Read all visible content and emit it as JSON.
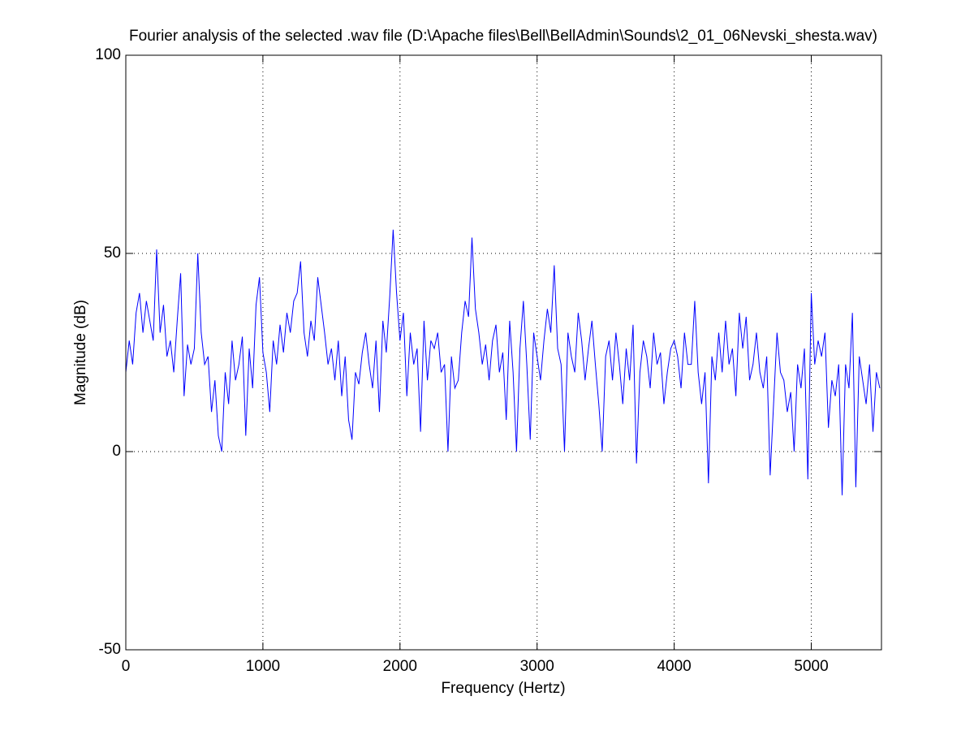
{
  "chart_data": {
    "type": "line",
    "title": "Fourier analysis of the selected .wav file (D:\\Apache files\\Bell\\BellAdmin\\Sounds\\2_01_06Nevski_shesta.wav)",
    "xlabel": "Frequency (Hertz)",
    "ylabel": "Magnitude (dB)",
    "xlim": [
      0,
      5512
    ],
    "ylim": [
      -50,
      100
    ],
    "xticks": [
      0,
      1000,
      2000,
      3000,
      4000,
      5000
    ],
    "yticks": [
      -50,
      0,
      50,
      100
    ],
    "grid": true,
    "series": [
      {
        "color": "#0000ff",
        "x": [
          0,
          25,
          50,
          75,
          100,
          125,
          150,
          175,
          200,
          225,
          250,
          275,
          300,
          325,
          350,
          375,
          400,
          425,
          450,
          475,
          500,
          525,
          550,
          575,
          600,
          625,
          650,
          675,
          700,
          725,
          750,
          775,
          800,
          825,
          850,
          875,
          900,
          925,
          950,
          975,
          1000,
          1025,
          1050,
          1075,
          1100,
          1125,
          1150,
          1175,
          1200,
          1225,
          1250,
          1275,
          1300,
          1325,
          1350,
          1375,
          1400,
          1425,
          1450,
          1475,
          1500,
          1525,
          1550,
          1575,
          1600,
          1625,
          1650,
          1675,
          1700,
          1725,
          1750,
          1775,
          1800,
          1825,
          1850,
          1875,
          1900,
          1925,
          1950,
          1975,
          2000,
          2025,
          2050,
          2075,
          2100,
          2125,
          2150,
          2175,
          2200,
          2225,
          2250,
          2275,
          2300,
          2325,
          2350,
          2375,
          2400,
          2425,
          2450,
          2475,
          2500,
          2525,
          2550,
          2575,
          2600,
          2625,
          2650,
          2675,
          2700,
          2725,
          2750,
          2775,
          2800,
          2825,
          2850,
          2875,
          2900,
          2925,
          2950,
          2975,
          3000,
          3025,
          3050,
          3075,
          3100,
          3125,
          3150,
          3175,
          3200,
          3225,
          3250,
          3275,
          3300,
          3325,
          3350,
          3375,
          3400,
          3425,
          3450,
          3475,
          3500,
          3525,
          3550,
          3575,
          3600,
          3625,
          3650,
          3675,
          3700,
          3725,
          3750,
          3775,
          3800,
          3825,
          3850,
          3875,
          3900,
          3925,
          3950,
          3975,
          4000,
          4025,
          4050,
          4075,
          4100,
          4125,
          4150,
          4175,
          4200,
          4225,
          4250,
          4275,
          4300,
          4325,
          4350,
          4375,
          4400,
          4425,
          4450,
          4475,
          4500,
          4525,
          4550,
          4575,
          4600,
          4625,
          4650,
          4675,
          4700,
          4725,
          4750,
          4775,
          4800,
          4825,
          4850,
          4875,
          4900,
          4925,
          4950,
          4975,
          5000,
          5025,
          5050,
          5075,
          5100,
          5125,
          5150,
          5175,
          5200,
          5225,
          5250,
          5275,
          5300,
          5325,
          5350,
          5375,
          5400,
          5425,
          5450,
          5475,
          5500
        ],
        "values": [
          20,
          28,
          22,
          35,
          40,
          30,
          38,
          33,
          28,
          51,
          30,
          37,
          24,
          28,
          20,
          33,
          45,
          14,
          27,
          22,
          26,
          50,
          30,
          22,
          24,
          10,
          18,
          4,
          0,
          20,
          12,
          28,
          18,
          22,
          29,
          4,
          26,
          16,
          37,
          44,
          25,
          20,
          10,
          28,
          22,
          32,
          25,
          35,
          30,
          38,
          40,
          48,
          30,
          24,
          33,
          28,
          44,
          37,
          30,
          22,
          26,
          18,
          28,
          14,
          24,
          8,
          3,
          20,
          17,
          25,
          30,
          22,
          16,
          28,
          10,
          33,
          25,
          39,
          56,
          40,
          28,
          35,
          14,
          30,
          22,
          26,
          5,
          33,
          18,
          28,
          26,
          30,
          20,
          22,
          0,
          24,
          16,
          18,
          30,
          38,
          34,
          54,
          36,
          30,
          22,
          27,
          18,
          28,
          32,
          20,
          25,
          8,
          33,
          20,
          0,
          26,
          38,
          22,
          3,
          30,
          24,
          18,
          28,
          36,
          30,
          47,
          26,
          22,
          0,
          30,
          24,
          20,
          35,
          28,
          18,
          26,
          33,
          22,
          12,
          0,
          24,
          28,
          18,
          30,
          22,
          12,
          26,
          18,
          32,
          -3,
          20,
          28,
          24,
          16,
          30,
          22,
          25,
          12,
          20,
          26,
          28,
          24,
          16,
          30,
          22,
          22,
          38,
          20,
          12,
          20,
          -8,
          24,
          18,
          30,
          20,
          33,
          22,
          26,
          14,
          35,
          26,
          34,
          18,
          22,
          30,
          20,
          16,
          24,
          -6,
          12,
          30,
          20,
          18,
          10,
          15,
          0,
          22,
          16,
          26,
          -7,
          40,
          22,
          28,
          24,
          30,
          6,
          18,
          14,
          22,
          -11,
          22,
          16,
          35,
          -9,
          24,
          18,
          12,
          22,
          5,
          20,
          16
        ]
      }
    ]
  }
}
